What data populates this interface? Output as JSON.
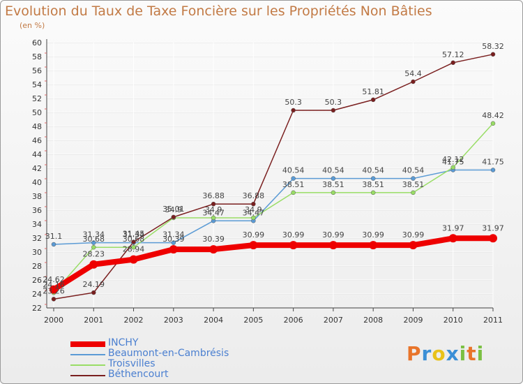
{
  "title": "Evolution du Taux de Taxe Foncière sur les Propriétés Non Bâties",
  "unit_label": "(en %)",
  "brand": {
    "text": "Proxiti",
    "colors": [
      "#e8742a",
      "#3a8fd6",
      "#e8c21a",
      "#3a8fd6",
      "#7bc043",
      "#e8742a",
      "#7bc043"
    ]
  },
  "chart_data": {
    "type": "line",
    "title": "Evolution du Taux de Taxe Foncière sur les Propriétés Non Bâties",
    "ylabel": "(en %)",
    "xlabel": "",
    "x": [
      "2000",
      "2001",
      "2002",
      "2003",
      "2004",
      "2005",
      "2006",
      "2007",
      "2008",
      "2009",
      "2010",
      "2011"
    ],
    "ylim": [
      22,
      60
    ],
    "yticks": [
      "22",
      "24",
      "26",
      "28",
      "30",
      "32",
      "34",
      "36",
      "38",
      "40",
      "42",
      "44",
      "46",
      "48",
      "50",
      "52",
      "54",
      "56",
      "58",
      "60"
    ],
    "grid": true,
    "legend_position": "bottom-left",
    "series": [
      {
        "name": "INCHY",
        "color": "#ee0000",
        "width": 8,
        "marker": 6,
        "values": [
          24.62,
          28.23,
          28.94,
          30.39,
          30.39,
          30.99,
          30.99,
          30.99,
          30.99,
          30.99,
          31.97,
          31.97
        ],
        "labels": [
          "24.62",
          "28.23",
          "28.94",
          "30.39",
          "30.39",
          "30.99",
          "30.99",
          "30.99",
          "30.99",
          "30.99",
          "31.97",
          "31.97"
        ]
      },
      {
        "name": "Beaumont-en-Cambrésis",
        "color": "#5b9bd5",
        "width": 1.5,
        "marker": 3,
        "values": [
          31.1,
          31.34,
          31.34,
          31.34,
          34.47,
          34.47,
          40.54,
          40.54,
          40.54,
          40.54,
          41.75,
          41.75
        ],
        "labels": [
          "31.1",
          "31.34",
          "31.34",
          "31.34",
          "34.47",
          "34.47",
          "40.54",
          "40.54",
          "40.54",
          "40.54",
          "41.75",
          "41.75"
        ]
      },
      {
        "name": "Troisvilles",
        "color": "#99dd66",
        "width": 1.5,
        "marker": 3,
        "values": [
          24.16,
          30.68,
          30.68,
          34.9,
          34.9,
          34.9,
          38.51,
          38.51,
          38.51,
          38.51,
          42.12,
          48.42
        ],
        "labels": [
          "24.16",
          "30.68",
          "30.68",
          "34.9",
          "34.9",
          "34.9",
          "38.51",
          "38.51",
          "38.51",
          "38.51",
          "42.12",
          "48.42"
        ]
      },
      {
        "name": "Béthencourt",
        "color": "#7a1f1f",
        "width": 1.5,
        "marker": 3,
        "values": [
          23.26,
          24.19,
          31.45,
          35.01,
          36.88,
          36.88,
          50.3,
          50.3,
          51.81,
          54.4,
          57.12,
          58.32
        ],
        "labels": [
          "23.26",
          "24.19",
          "31.45",
          "35.01",
          "36.88",
          "36.88",
          "50.3",
          "50.3",
          "51.81",
          "54.4",
          "57.12",
          "58.32"
        ]
      }
    ]
  }
}
